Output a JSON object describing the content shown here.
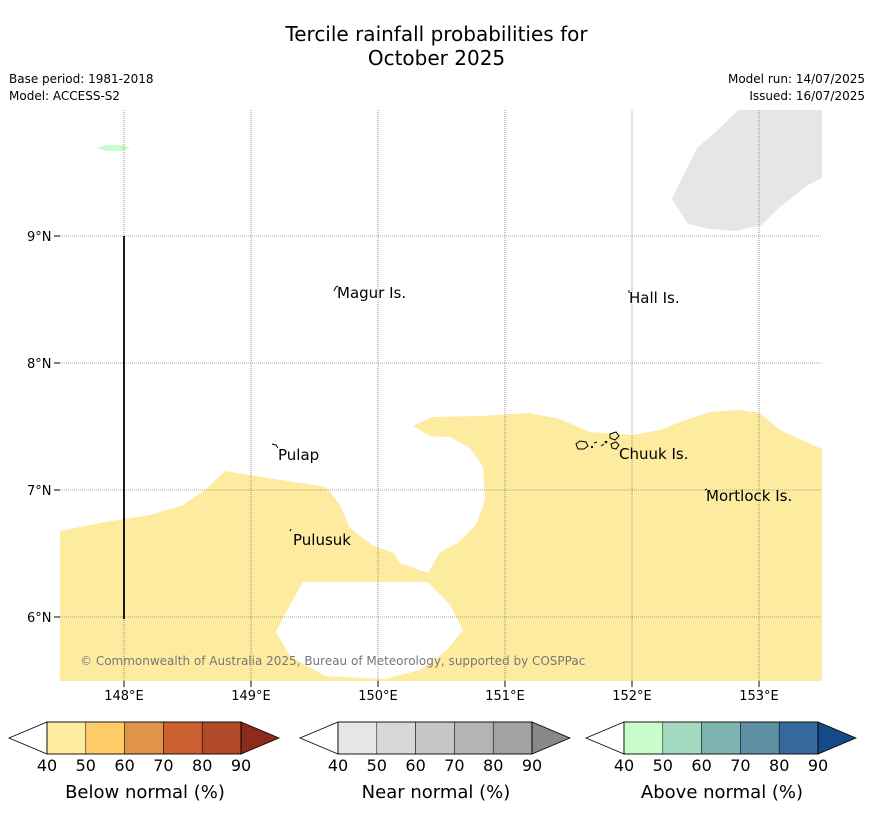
{
  "title": {
    "line1": "Tercile rainfall probabilities for",
    "line2": "October 2025"
  },
  "meta": {
    "base_period": "Base period: 1981-2018",
    "model": "Model: ACCESS-S2",
    "model_run": "Model run: 14/07/2025",
    "issued": "Issued: 16/07/2025"
  },
  "map": {
    "lat_labels": [
      "9°N",
      "8°N",
      "7°N",
      "6°N"
    ],
    "lon_labels": [
      "148°E",
      "149°E",
      "150°E",
      "151°E",
      "152°E",
      "153°E"
    ],
    "places": [
      "Magur Is.",
      "Hall Is.",
      "Pulap",
      "Chuuk Is.",
      "Mortlock Is.",
      "Pulusuk"
    ],
    "copyright": "© Commonwealth of Australia 2025, Bureau of Meteorology, supported by COSPPac",
    "colors": {
      "below_40": "#fdeca0",
      "near_40": "#e6e6e6",
      "above_40": "#c9fccc"
    }
  },
  "colorbars": [
    {
      "label": "Below normal (%)",
      "ticks": [
        "40",
        "50",
        "60",
        "70",
        "80",
        "90"
      ],
      "colors": [
        "#fdeca0",
        "#fecd69",
        "#e0944a",
        "#cb6131",
        "#b04a28",
        "#8d2a1b"
      ]
    },
    {
      "label": "Near normal (%)",
      "ticks": [
        "40",
        "50",
        "60",
        "70",
        "80",
        "90"
      ],
      "colors": [
        "#e6e6e6",
        "#d8d8d8",
        "#c6c6c6",
        "#b4b4b4",
        "#a2a2a2",
        "#888888"
      ]
    },
    {
      "label": "Above normal (%)",
      "ticks": [
        "40",
        "50",
        "60",
        "70",
        "80",
        "90"
      ],
      "colors": [
        "#c9fccc",
        "#a4d9c1",
        "#7eb4b0",
        "#5b8fa1",
        "#36699d",
        "#144b87"
      ]
    }
  ]
}
